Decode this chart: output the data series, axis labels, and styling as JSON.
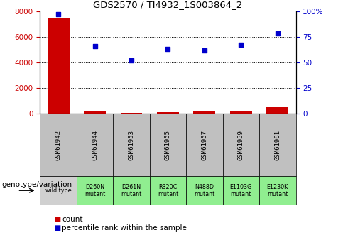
{
  "title": "GDS2570 / TI4932_1S003864_2",
  "samples": [
    "GSM61942",
    "GSM61944",
    "GSM61953",
    "GSM61955",
    "GSM61957",
    "GSM61959",
    "GSM61961"
  ],
  "genotypes": [
    "wild type",
    "D260N\nmutant",
    "D261N\nmutant",
    "R320C\nmutant",
    "N488D\nmutant",
    "E1103G\nmutant",
    "E1230K\nmutant"
  ],
  "genotype_colors": [
    "#d0d0d0",
    "#90ee90",
    "#90ee90",
    "#90ee90",
    "#90ee90",
    "#90ee90",
    "#90ee90"
  ],
  "counts": [
    7500,
    200,
    100,
    150,
    250,
    200,
    600
  ],
  "percentile_ranks": [
    97,
    66,
    52,
    63,
    62,
    67,
    78
  ],
  "bar_color": "#cc0000",
  "dot_color": "#0000cc",
  "left_ylim": [
    0,
    8000
  ],
  "left_yticks": [
    0,
    2000,
    4000,
    6000,
    8000
  ],
  "right_ylim": [
    0,
    100
  ],
  "right_yticks": [
    0,
    25,
    50,
    75,
    100
  ],
  "right_yticklabels": [
    "0",
    "25",
    "50",
    "75",
    "100%"
  ],
  "left_tick_color": "#cc0000",
  "right_tick_color": "#0000cc",
  "grid_color": "black",
  "grid_linestyle": "dotted",
  "grid_values": [
    2000,
    4000,
    6000
  ],
  "background_color": "white",
  "sample_box_color": "#c0c0c0",
  "legend_items": [
    "count",
    "percentile rank within the sample"
  ],
  "legend_colors": [
    "#cc0000",
    "#0000cc"
  ],
  "genotype_label": "genotype/variation"
}
